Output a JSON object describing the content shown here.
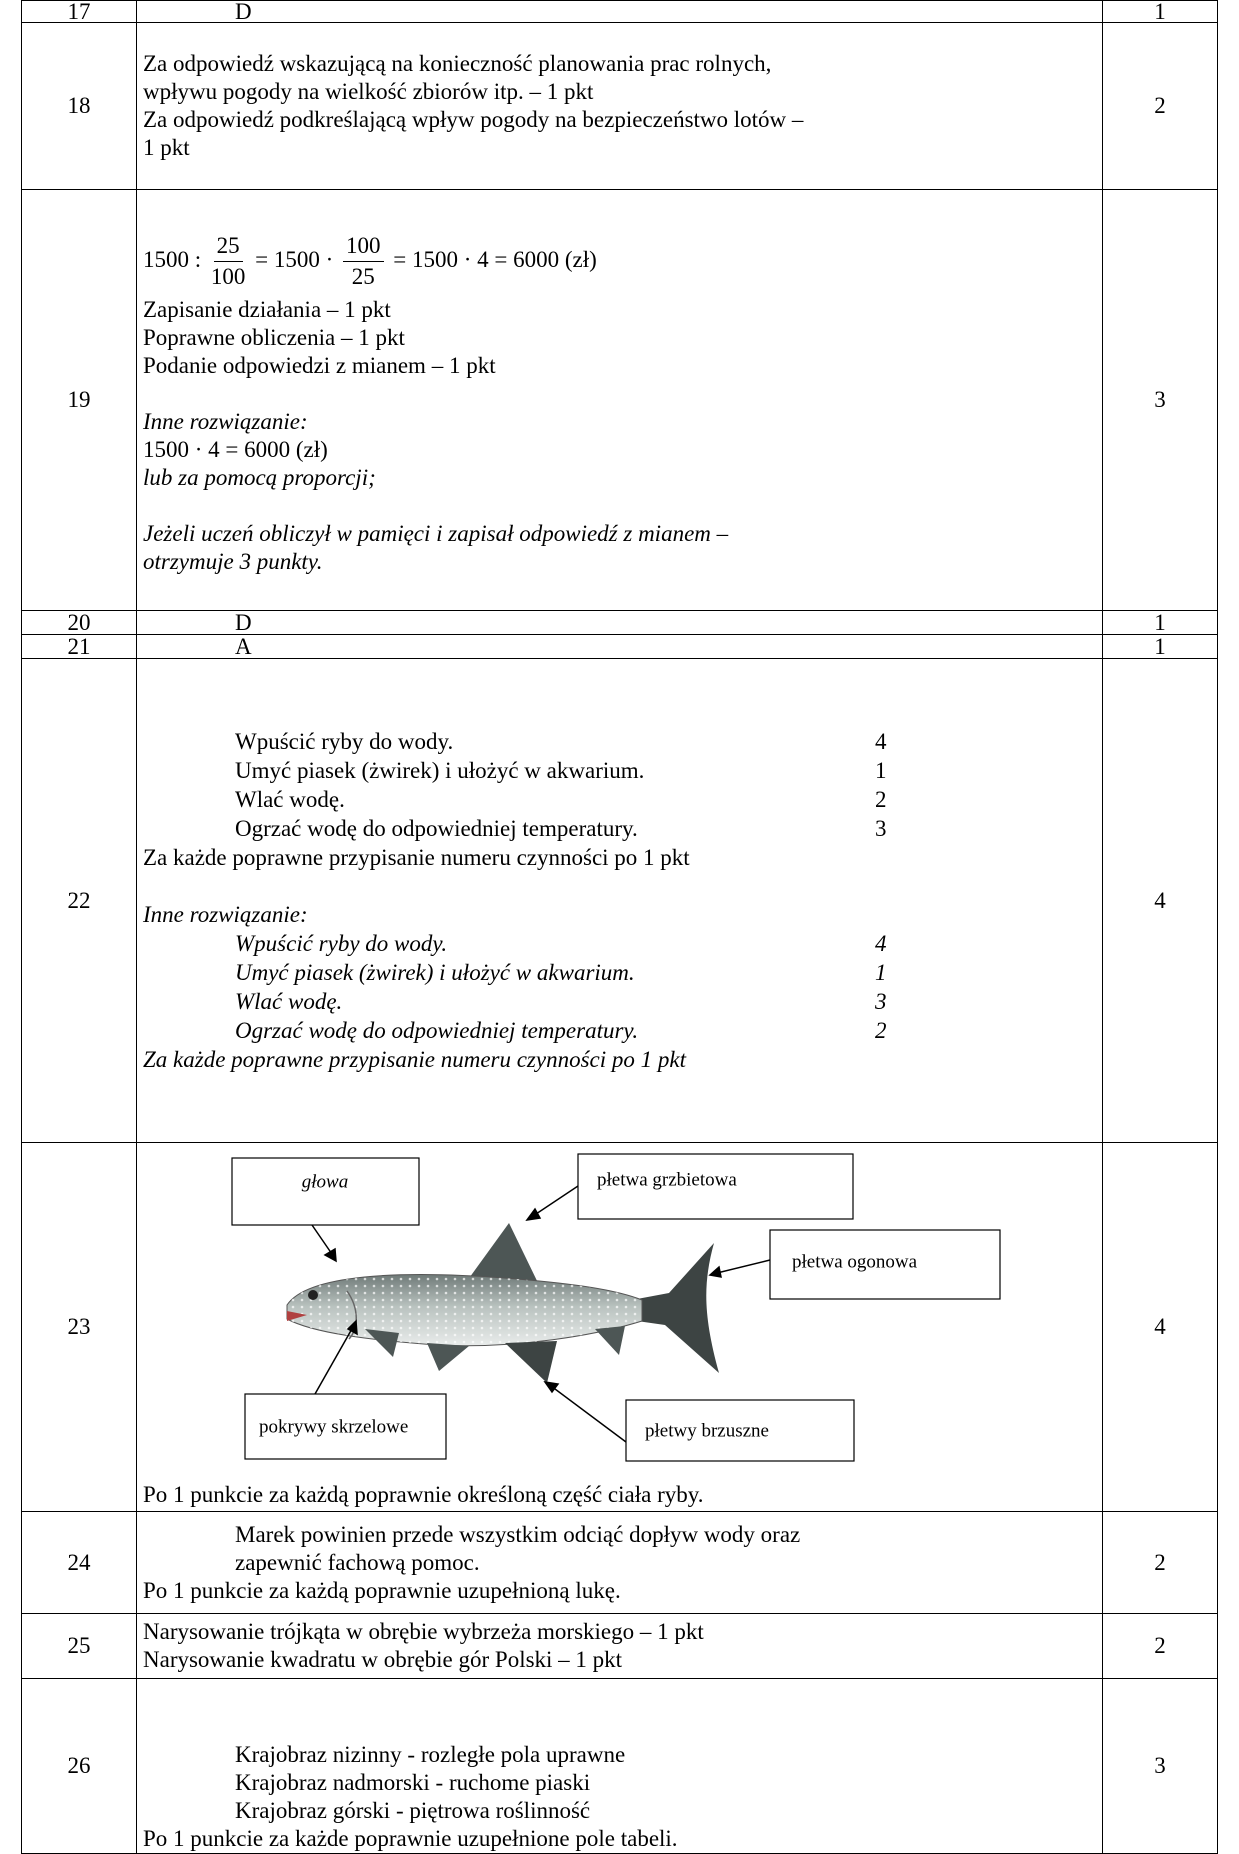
{
  "table": {
    "rows": [
      {
        "number": "17",
        "answer": "D",
        "points": "1"
      },
      {
        "number": "18",
        "lines": [
          "Za odpowiedź wskazującą na konieczność planowania prac rolnych,",
          "wpływu pogody na wielkość zbiorów itp. – 1 pkt",
          "Za odpowiedź podkreślającą wpływ pogody na bezpieczeństwo lotów –",
          "1 pkt"
        ],
        "points": "2"
      },
      {
        "number": "19",
        "formula": {
          "a": "1500 :",
          "f1_num": "25",
          "f1_den": "100",
          "b": "= 1500 ·",
          "f2_num": "100",
          "f2_den": "25",
          "c": "= 1500 · 4 = 6000 (zł)"
        },
        "lines": [
          "Zapisanie działania – 1 pkt",
          "Poprawne obliczenia – 1 pkt",
          "Podanie odpowiedzi z mianem – 1 pkt"
        ],
        "alt_label": "Inne rozwiązanie:",
        "alt_formula": "1500 · 4 = 6000 (zł)",
        "alt_note": "lub za pomocą proporcji;",
        "remark": [
          "Jeżeli uczeń obliczył w pamięci i zapisał odpowiedź z mianem –",
          "otrzymuje 3 punkty."
        ],
        "points": "3"
      },
      {
        "number": "20",
        "answer": "D",
        "points": "1"
      },
      {
        "number": "21",
        "answer": "A",
        "points": "1"
      },
      {
        "number": "22",
        "items": [
          {
            "text": "Wpuścić ryby do wody.",
            "order": "4"
          },
          {
            "text": "Umyć piasek (żwirek) i ułożyć w akwarium.",
            "order": "1"
          },
          {
            "text": "Wlać wodę.",
            "order": "2"
          },
          {
            "text": "Ogrzać wodę do odpowiedniej temperatury.",
            "order": "3"
          }
        ],
        "note": "Za każde poprawne przypisanie numeru czynności po 1 pkt",
        "alt_label": "Inne rozwiązanie:",
        "alt_items": [
          {
            "text": "Wpuścić ryby do wody.",
            "order": "4"
          },
          {
            "text": "Umyć piasek (żwirek) i ułożyć w akwarium.",
            "order": "1"
          },
          {
            "text": "Wlać wodę.",
            "order": "3"
          },
          {
            "text": "Ogrzać wodę do odpowiedniej temperatury.",
            "order": "2"
          }
        ],
        "alt_note": "Za każde poprawne przypisanie numeru czynności po 1 pkt",
        "points": "4"
      },
      {
        "number": "23",
        "labels": {
          "head": "głowa",
          "dorsal_fin": "płetwa grzbietowa",
          "tail_fin": "płetwa ogonowa",
          "gill_covers": "pokrywy skrzelowe",
          "pelvic_fins": "płetwy brzuszne"
        },
        "note": "Po 1 punkcie za każdą poprawnie określoną część ciała ryby.",
        "points": "4"
      },
      {
        "number": "24",
        "lines": [
          "Marek powinien przede wszystkim odciąć dopływ wody oraz",
          "zapewnić fachową pomoc."
        ],
        "note": "Po 1 punkcie za każdą poprawnie uzupełnioną lukę.",
        "points": "2"
      },
      {
        "number": "25",
        "lines": [
          "Narysowanie trójkąta w obrębie wybrzeża morskiego – 1 pkt",
          "Narysowanie kwadratu w obrębie gór Polski – 1 pkt"
        ],
        "points": "2"
      },
      {
        "number": "26",
        "lines": [
          "Krajobraz nizinny - rozległe pola uprawne",
          "Krajobraz nadmorski - ruchome piaski",
          "Krajobraz górski - piętrowa roślinność"
        ],
        "note": "Po 1 punkcie za każde poprawnie uzupełnione pole tabeli.",
        "points": "3"
      }
    ]
  }
}
